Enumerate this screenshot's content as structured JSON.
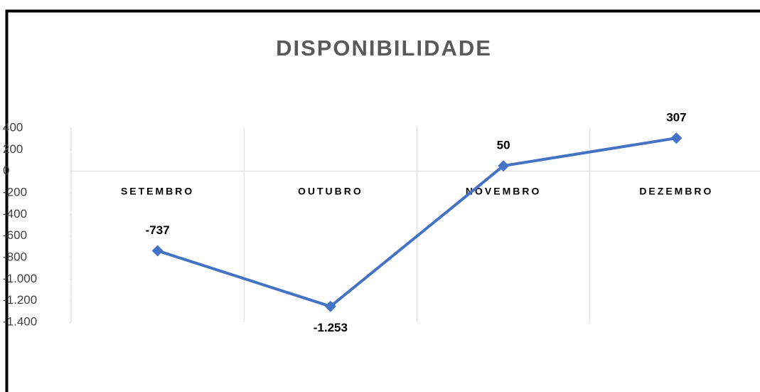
{
  "chart_data": {
    "type": "line",
    "title": "DISPONIBILIDADE",
    "categories": [
      "SETEMBRO",
      "OUTUBRO",
      "NOVEMBRO",
      "DEZEMBRO"
    ],
    "series": [
      {
        "name": "DISPONIBILIDADE",
        "color": "#4472c4",
        "values": [
          -737,
          -1253,
          50,
          307
        ],
        "value_labels": [
          "-737",
          "-1.253",
          "50",
          "307"
        ]
      }
    ],
    "ylim": [
      -1400,
      400
    ],
    "yticks": [
      {
        "value": -1400,
        "label": "-1.400"
      },
      {
        "value": -1200,
        "label": "-1.200"
      },
      {
        "value": -1000,
        "label": "-1.000"
      },
      -800,
      -600,
      -400,
      -200,
      0,
      200,
      400
    ],
    "grid": "x",
    "legend": false
  }
}
